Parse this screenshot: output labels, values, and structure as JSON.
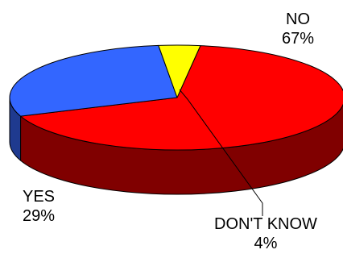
{
  "chart_data": {
    "type": "pie",
    "title": "",
    "categories": [
      "NO",
      "YES",
      "DON'T KNOW"
    ],
    "values": [
      67,
      29,
      4
    ],
    "labels": [
      {
        "name": "NO",
        "percent": "67%"
      },
      {
        "name": "YES",
        "percent": "29%"
      },
      {
        "name": "DON'T KNOW",
        "percent": "4%"
      }
    ],
    "colors": {
      "NO": {
        "top": "#ff0000",
        "side": "#800000"
      },
      "YES": {
        "top": "#3366ff",
        "side": "#1f3a8f"
      },
      "DON'T KNOW": {
        "top": "#ffff00",
        "side": "#808000"
      }
    },
    "style": "3d-tilted",
    "legend": "none"
  }
}
